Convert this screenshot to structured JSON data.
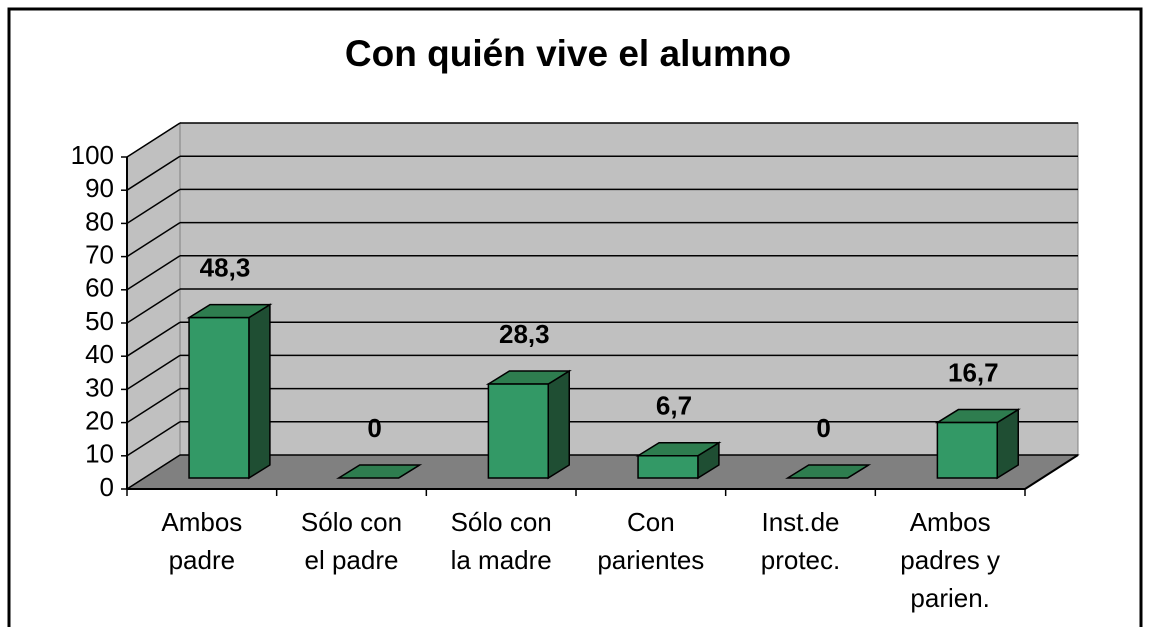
{
  "chart_data": {
    "type": "bar3d",
    "title": "Con quién vive el alumno",
    "categories": [
      [
        "Ambos",
        "padre"
      ],
      [
        "Sólo con",
        "el padre"
      ],
      [
        "Sólo con",
        "la madre"
      ],
      [
        "Con",
        "parientes"
      ],
      [
        "Inst.de",
        "protec."
      ],
      [
        "Ambos",
        "padres y",
        "parien."
      ]
    ],
    "values": [
      48.3,
      0,
      28.3,
      6.7,
      0,
      16.7
    ],
    "value_labels": [
      "48,3",
      "0",
      "28,3",
      "6,7",
      "0",
      "16,7"
    ],
    "color": "#339966",
    "ylim": [
      0,
      100
    ],
    "yticks": [
      0,
      10,
      20,
      30,
      40,
      50,
      60,
      70,
      80,
      90,
      100
    ],
    "grid": true
  }
}
